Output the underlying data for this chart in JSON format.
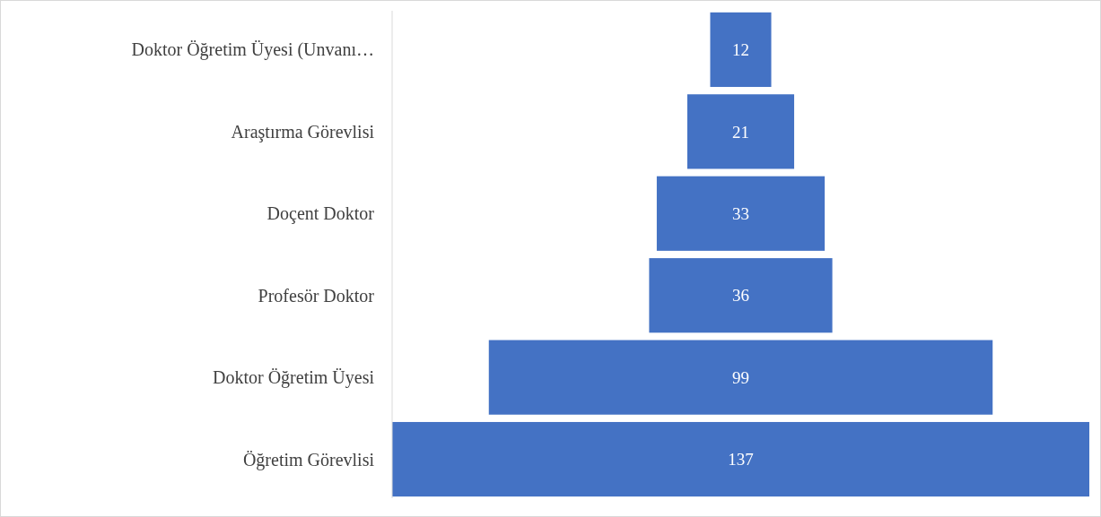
{
  "chart_data": {
    "type": "other",
    "categories": [
      "Doktor Öğretim Üyesi (Unvanı…",
      "Araştırma Görevlisi",
      "Doçent Doktor",
      "Profesör Doktor",
      "Doktor Öğretim Üyesi",
      "Öğretim Görevlisi"
    ],
    "values": [
      12,
      21,
      33,
      36,
      99,
      137
    ],
    "color": "#4472c4",
    "data_labels": true
  }
}
